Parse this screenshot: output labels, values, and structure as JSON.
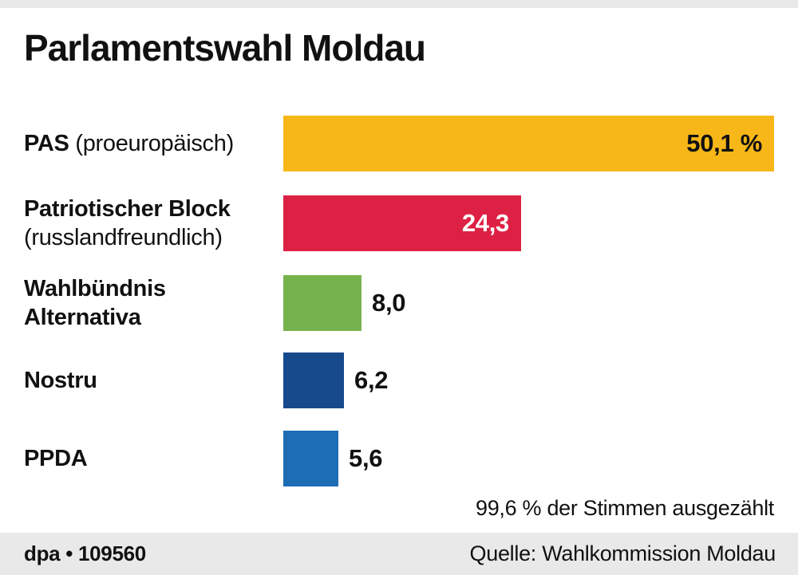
{
  "page": {
    "background": "#ffffff",
    "top_strip_color": "#e9e9e9",
    "footer_strip_color": "#e9e9e9"
  },
  "header": {
    "title": "Parlamentswahl Moldau"
  },
  "chart_data": {
    "type": "bar",
    "orientation": "horizontal",
    "title": "Parlamentswahl Moldau",
    "value_unit": "percent",
    "xlim": [
      0,
      50.1
    ],
    "grid": false,
    "legend": false,
    "categories": [
      "PAS (proeuropäisch)",
      "Patriotischer Block (russlandfreundlich)",
      "Wahlbündnis Alternativa",
      "Nostru",
      "PPDA"
    ],
    "values": [
      50.1,
      24.3,
      8.0,
      6.2,
      5.6
    ],
    "bars": [
      {
        "label_bold": "PAS",
        "label_rest": " (proeuropäisch)",
        "value": 50.1,
        "value_label": "50,1 %",
        "color": "#f7b718",
        "value_color": "#111111",
        "value_position": "inside"
      },
      {
        "label_line1": "Patriotischer Block",
        "label_line2": "(russlandfreundlich)",
        "value": 24.3,
        "value_label": "24,3",
        "color": "#dd2144",
        "value_color": "#ffffff",
        "value_position": "inside"
      },
      {
        "label_line1": "Wahlbündnis",
        "label_line2": "Alternativa",
        "value": 8.0,
        "value_label": "8,0",
        "color": "#77b34d",
        "value_color": "#111111",
        "value_position": "outside"
      },
      {
        "label": "Nostru",
        "value": 6.2,
        "value_label": "6,2",
        "color": "#17498d",
        "value_color": "#111111",
        "value_position": "outside"
      },
      {
        "label": "PPDA",
        "value": 5.6,
        "value_label": "5,6",
        "color": "#1c6db4",
        "value_color": "#111111",
        "value_position": "outside"
      }
    ],
    "note": "99,6 % der Stimmen ausgezählt"
  },
  "footer": {
    "left": "dpa • 109560",
    "right": "Quelle: Wahlkommission Moldau"
  }
}
